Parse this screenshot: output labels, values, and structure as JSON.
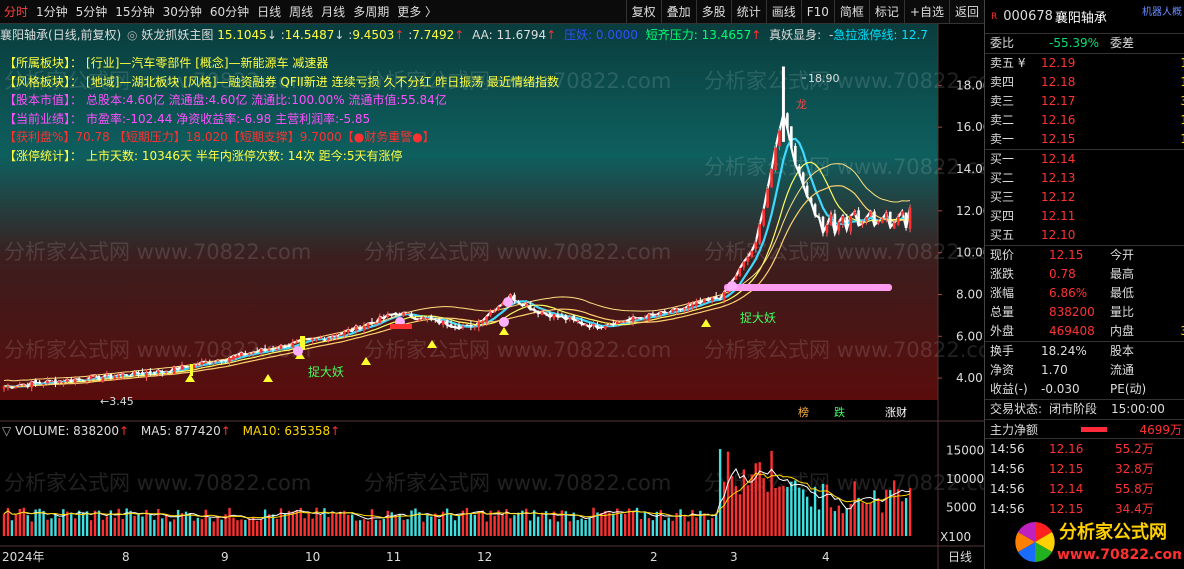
{
  "topbar": {
    "periods": [
      "分时",
      "1分钟",
      "5分钟",
      "15分钟",
      "30分钟",
      "60分钟",
      "日线",
      "周线",
      "月线",
      "多周期",
      "更多 〉"
    ],
    "active": 0,
    "tools": [
      "复权",
      "叠加",
      "多股",
      "统计",
      "画线",
      "F10",
      "简框",
      "标记",
      "+自选",
      "返回"
    ]
  },
  "header": {
    "stock": "襄阳轴承",
    "mode": "(日线,前复权)",
    "indicator": "妖龙抓妖主图",
    "v1": "15.1045",
    "v2": "14.5487",
    "v3": "9.4503",
    "v4": "7.7492",
    "aa": "AA: 11.6794",
    "zhiya": "压妖: 0.0000",
    "short_pressure": "短齐压力: 13.4657",
    "real_demon": "真妖显身:",
    "rally": "急拉涨停线: 12.7"
  },
  "infobox": [
    {
      "label": "【所属板块】：",
      "text": "[行业]—汽车零部件 [概念]—新能源车 减速器",
      "color": "#ffff40"
    },
    {
      "label": "【风格板块】：",
      "text": "[地域]—湖北板块 [风格]—融资融券 QFII新进 连续亏损 久不分红 昨日振荡 最近情绪指数",
      "color": "#ffff40"
    },
    {
      "label": "【股本市值】：",
      "text": "总股本:4.60亿 流通盘:4.60亿 流通比:100.00% 流通市值:55.84亿",
      "color": "#ff50ff"
    },
    {
      "label": "【当前业绩】：",
      "text": "市盈率:-102.44 净资收益率:-6.98 主营利润率:-5.85",
      "color": "#ff50ff"
    },
    {
      "label": "【获利盘%】70.78",
      "text": "【短期压力】18.020【短期支撑】9.7000【●财务重警●】",
      "color": "#ff3030"
    },
    {
      "label": "【涨停统计】：",
      "text": "上市天数: 10346天 半年内涨停次数: 14次 距今:5天有涨停",
      "color": "#ffff40"
    }
  ],
  "price_axis": [
    "18.00",
    "16.00",
    "14.00",
    "12.00",
    "10.00",
    "8.00",
    "6.00",
    "4.00"
  ],
  "peak_label": "18.90",
  "low_label": "←3.45",
  "annotations": {
    "catch1": "捉大妖",
    "catch2": "捉大妖",
    "dragon": "龙"
  },
  "bottom_tags": {
    "bang": "榜",
    "die": "跌",
    "caifu": "涨财"
  },
  "volume_header": {
    "name": "VOLUME: 838200",
    "ma5": "MA5: 877420",
    "ma10": "MA10: 635358"
  },
  "vol_axis": [
    "15000",
    "10000",
    "5000"
  ],
  "vol_unit": "X100",
  "x_axis": [
    "2024年",
    "8",
    "9",
    "10",
    "11",
    "12",
    "2",
    "3",
    "4"
  ],
  "x_mode": "日线",
  "watermark": "分析家公式网 www.70822.com",
  "quote": {
    "code": "000678",
    "name": "襄阳轴承",
    "tag": "机器人概",
    "weibi_label": "委比",
    "weibi": "-55.39%",
    "weicha_label": "委差",
    "asks": [
      {
        "label": "卖五 ¥",
        "price": "12.19",
        "qty": "1"
      },
      {
        "label": "卖四",
        "price": "12.18",
        "qty": "1"
      },
      {
        "label": "卖三",
        "price": "12.17",
        "qty": "3"
      },
      {
        "label": "卖二",
        "price": "12.16",
        "qty": "1"
      },
      {
        "label": "卖一",
        "price": "12.15",
        "qty": "1"
      }
    ],
    "bids": [
      {
        "label": "买一",
        "price": "12.14"
      },
      {
        "label": "买二",
        "price": "12.13"
      },
      {
        "label": "买三",
        "price": "12.12"
      },
      {
        "label": "买四",
        "price": "12.11"
      },
      {
        "label": "买五",
        "price": "12.10"
      }
    ],
    "stats": [
      {
        "l": "现价",
        "v": "12.15",
        "l2": "今开"
      },
      {
        "l": "涨跌",
        "v": "0.78",
        "l2": "最高"
      },
      {
        "l": "涨幅",
        "v": "6.86%",
        "l2": "最低"
      },
      {
        "l": "总量",
        "v": "838200",
        "l2": "量比"
      },
      {
        "l": "外盘",
        "v": "469408",
        "l2": "内盘",
        "q": "3"
      }
    ],
    "stats2": [
      {
        "l": "换手",
        "v": "18.24%",
        "l2": "股本"
      },
      {
        "l": "净资",
        "v": "1.70",
        "l2": "流通"
      },
      {
        "l": "收益(-)",
        "v": "-0.030",
        "l2": "PE(动)"
      }
    ],
    "status_label": "交易状态:",
    "status": "闭市阶段",
    "status_time": "15:00:00",
    "flow_label": "主力净额",
    "flow_value": "4699万",
    "ticks": [
      {
        "t": "14:56",
        "p": "12.16",
        "v": "55.2万"
      },
      {
        "t": "14:56",
        "p": "12.15",
        "v": "32.8万"
      },
      {
        "t": "14:56",
        "p": "12.14",
        "v": "55.8万"
      },
      {
        "t": "14:56",
        "p": "12.15",
        "v": "34.4万"
      }
    ]
  },
  "logo": {
    "text": "分析家公式网",
    "url": "www.70822.com"
  },
  "chart_data": {
    "type": "candlestick",
    "x_labels": [
      "2024年",
      "8",
      "9",
      "10",
      "11",
      "12",
      "2",
      "3",
      "4"
    ],
    "price_range": [
      3.45,
      18.9
    ],
    "peak": 18.9,
    "low": 3.45,
    "last_close": 12.15,
    "volume_last": 838200,
    "volume_ma5": 877420,
    "volume_ma10": 635358,
    "volume_range": [
      0,
      17000
    ]
  }
}
